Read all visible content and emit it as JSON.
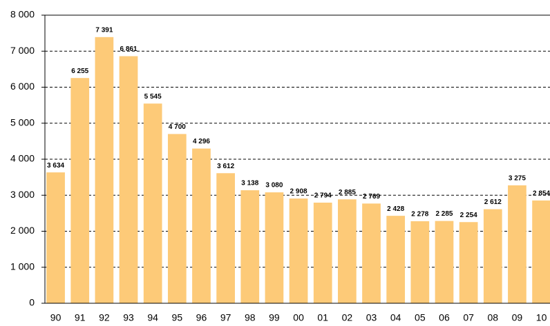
{
  "chart_data": {
    "type": "bar",
    "categories": [
      "90",
      "91",
      "92",
      "93",
      "94",
      "95",
      "96",
      "97",
      "98",
      "99",
      "00",
      "01",
      "02",
      "03",
      "04",
      "05",
      "06",
      "07",
      "08",
      "09",
      "10"
    ],
    "values": [
      3634,
      6255,
      7391,
      6861,
      5545,
      4700,
      4296,
      3612,
      3138,
      3080,
      2908,
      2794,
      2885,
      2769,
      2428,
      2278,
      2285,
      2254,
      2612,
      3275,
      2854
    ],
    "value_labels": [
      "3 634",
      "6 255",
      "7 391",
      "6 861",
      "5 545",
      "4 700",
      "4 296",
      "3 612",
      "3 138",
      "3 080",
      "2 908",
      "2 794",
      "2 885",
      "2 769",
      "2 428",
      "2 278",
      "2 285",
      "2 254",
      "2 612",
      "3 275",
      "2 854"
    ],
    "color": "#fdca78",
    "ylim": [
      0,
      8000
    ],
    "yticks": [
      0,
      {
        "value": 1000,
        "label": "1 000"
      },
      {
        "value": 2000,
        "label": "2 000"
      },
      {
        "value": 3000,
        "label": "3 000"
      },
      {
        "value": 4000,
        "label": "4 000"
      },
      {
        "value": 5000,
        "label": "5 000"
      },
      {
        "value": 6000,
        "label": "6 000"
      },
      {
        "value": 7000,
        "label": "7 000"
      },
      {
        "value": 8000,
        "label": "8 000"
      }
    ],
    "grid": true
  }
}
